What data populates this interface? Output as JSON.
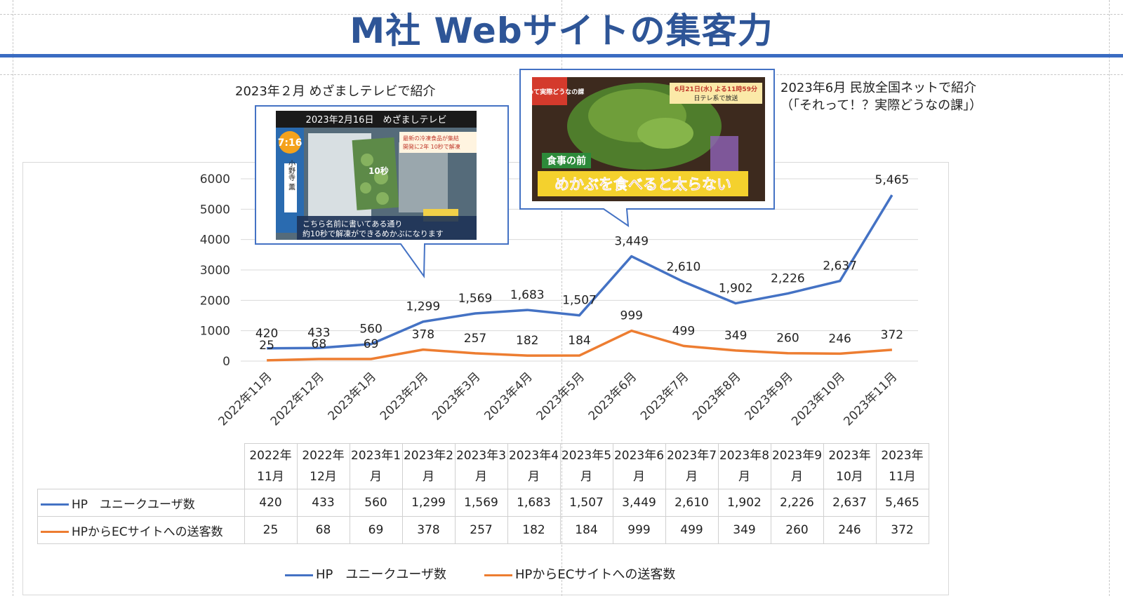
{
  "title": "M社 Webサイトの集客力",
  "annotations": {
    "feb_caption": "2023年２月 めざましテレビで紹介",
    "jun_caption_line1": "2023年6月 民放全国ネットで紹介",
    "jun_caption_line2": "（「それって！？実際どうなの課」）"
  },
  "feb_photo": {
    "banner": "2023年2月16日　めざましテレビ",
    "clock": "7:16",
    "name": "小野寺 薫",
    "pack_text": "10秒",
    "side_text": "最新の冷凍食品が集結",
    "side_text2": "開発に2年 10秒で解凍",
    "subtitle1": "こちら名前に書いてある通り",
    "subtitle2": "約10秒で解凍ができるめかぶになります"
  },
  "jun_photo": {
    "logo": "それって実際どうなの課",
    "airtime": "6月21日(水) よる11時59分",
    "network": "日テレ系で放送",
    "tag": "食事の前",
    "headline": "めかぶを食べると太らない"
  },
  "colors": {
    "hp": "#4472c4",
    "ec": "#ed7d31",
    "title": "#2e5597",
    "rule": "#3a6cc2"
  },
  "chart_data": {
    "type": "line",
    "categories": [
      "2022年11月",
      "2022年12月",
      "2023年1月",
      "2023年2月",
      "2023年3月",
      "2023年4月",
      "2023年5月",
      "2023年6月",
      "2023年7月",
      "2023年8月",
      "2023年9月",
      "2023年10月",
      "2023年11月"
    ],
    "ylim": [
      0,
      6000
    ],
    "yticks": [
      "0",
      "1000",
      "2000",
      "3000",
      "4000",
      "5000",
      "6000"
    ],
    "grid": true,
    "legend_position": "bottom",
    "series": [
      {
        "name": "HP　ユニークユーザ数",
        "color": "#4472c4",
        "values": [
          420,
          433,
          560,
          1299,
          1569,
          1683,
          1507,
          3449,
          2610,
          1902,
          2226,
          2637,
          5465
        ],
        "labels": [
          "420",
          "433",
          "560",
          "1,299",
          "1,569",
          "1,683",
          "1,507",
          "3,449",
          "2,610",
          "1,902",
          "2,226",
          "2,637",
          "5,465"
        ]
      },
      {
        "name": "HPからECサイトへの送客数",
        "color": "#ed7d31",
        "values": [
          25,
          68,
          69,
          378,
          257,
          182,
          184,
          999,
          499,
          349,
          260,
          246,
          372
        ],
        "labels": [
          "25",
          "68",
          "69",
          "378",
          "257",
          "182",
          "184",
          "999",
          "499",
          "349",
          "260",
          "246",
          "372"
        ]
      }
    ]
  },
  "table": {
    "headers": [
      [
        "2022年",
        "11月"
      ],
      [
        "2022年",
        "12月"
      ],
      [
        "2023年1",
        "月"
      ],
      [
        "2023年2",
        "月"
      ],
      [
        "2023年3",
        "月"
      ],
      [
        "2023年4",
        "月"
      ],
      [
        "2023年5",
        "月"
      ],
      [
        "2023年6",
        "月"
      ],
      [
        "2023年7",
        "月"
      ],
      [
        "2023年8",
        "月"
      ],
      [
        "2023年9",
        "月"
      ],
      [
        "2023年",
        "10月"
      ],
      [
        "2023年",
        "11月"
      ]
    ],
    "rows": [
      {
        "label": "HP　ユニークユーザ数",
        "cells": [
          "420",
          "433",
          "560",
          "1,299",
          "1,569",
          "1,683",
          "1,507",
          "3,449",
          "2,610",
          "1,902",
          "2,226",
          "2,637",
          "5,465"
        ]
      },
      {
        "label": "HPからECサイトへの送客数",
        "cells": [
          "25",
          "68",
          "69",
          "378",
          "257",
          "182",
          "184",
          "999",
          "499",
          "349",
          "260",
          "246",
          "372"
        ]
      }
    ]
  },
  "legend": {
    "hp": "HP　ユニークユーザ数",
    "ec": "HPからECサイトへの送客数"
  }
}
